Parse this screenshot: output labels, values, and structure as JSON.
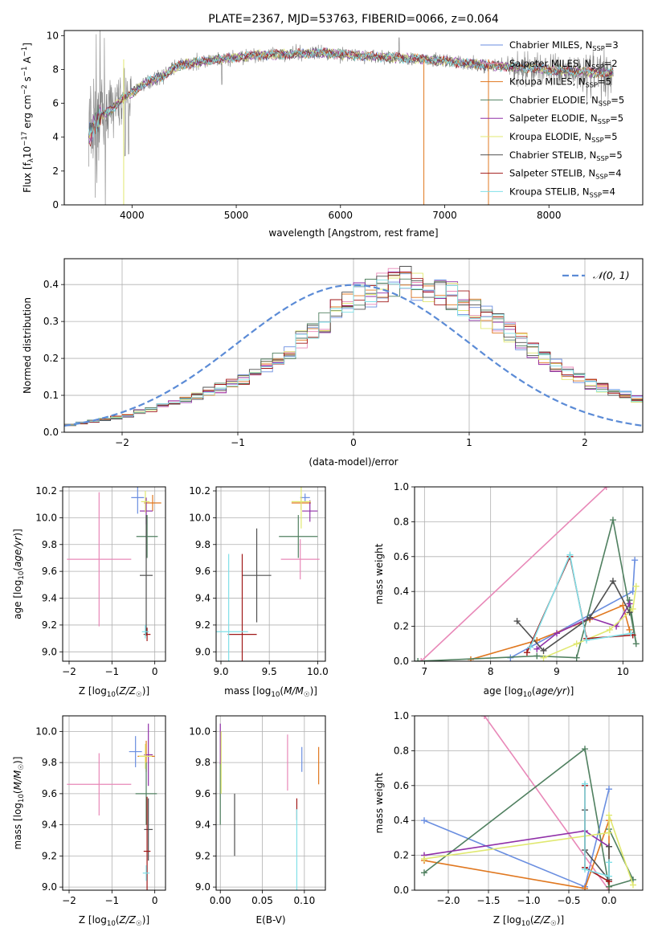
{
  "colors": {
    "Chabrier MILES": "#6a8ee0",
    "Salpeter MILES": "#e888b8",
    "Kroupa MILES": "#e07820",
    "Chabrier ELODIE": "#508060",
    "Salpeter ELODIE": "#9030a8",
    "Kroupa ELODIE": "#e0e870",
    "Chabrier STELIB": "#505050",
    "Salpeter STELIB": "#a01818",
    "Kroupa STELIB": "#80e0e8",
    "data": "#808080",
    "gaussian": "#5b8bd6",
    "grid": "#b0b0b0"
  },
  "chart_data": [
    {
      "id": "spectrum",
      "type": "line",
      "title": "PLATE=2367, MJD=53763, FIBERID=0066, z=0.064",
      "xlabel": "wavelength [Angstrom, rest frame]",
      "ylabel": "Flux [f_λ10^-17 erg cm^-2 s^-1 A^-1]",
      "xlim": [
        3350,
        8900
      ],
      "ylim": [
        0,
        10.3
      ],
      "xticks": [
        4000,
        5000,
        6000,
        7000,
        8000
      ],
      "yticks": [
        0,
        2,
        4,
        6,
        8,
        10
      ],
      "grid": false,
      "legend_position": "right",
      "legend": [
        {
          "label": "Chabrier MILES, N",
          "sub": "SSP",
          "value": "=3"
        },
        {
          "label": "Salpeter MILES, N",
          "sub": "SSP",
          "value": "=2"
        },
        {
          "label": "Kroupa MILES, N",
          "sub": "SSP",
          "value": "=5"
        },
        {
          "label": "Chabrier ELODIE, N",
          "sub": "SSP",
          "value": "=5"
        },
        {
          "label": "Salpeter ELODIE, N",
          "sub": "SSP",
          "value": "=5"
        },
        {
          "label": "Kroupa ELODIE, N",
          "sub": "SSP",
          "value": "=5"
        },
        {
          "label": "Chabrier STELIB, N",
          "sub": "SSP",
          "value": "=5"
        },
        {
          "label": "Salpeter STELIB, N",
          "sub": "SSP",
          "value": "=4"
        },
        {
          "label": "Kroupa STELIB, N",
          "sub": "SSP",
          "value": "=4"
        }
      ],
      "continuum_x": [
        3600,
        3700,
        3800,
        3900,
        4000,
        4100,
        4200,
        4300,
        4400,
        4500,
        4700,
        5000,
        5200,
        5500,
        5800,
        6000,
        6200,
        6500,
        6800,
        7000,
        7300,
        7500,
        8000,
        8500
      ],
      "continuum_y": [
        4.2,
        5.3,
        5.6,
        6.3,
        6.6,
        7.1,
        7.4,
        7.6,
        8.1,
        8.3,
        8.5,
        8.7,
        8.85,
        8.9,
        9.0,
        8.9,
        8.8,
        8.7,
        8.6,
        8.5,
        8.3,
        8.2,
        8.0,
        7.8
      ]
    },
    {
      "id": "residuals",
      "type": "histogram",
      "xlabel": "(data-model)/error",
      "ylabel": "Normed distribution",
      "xlim": [
        -2.5,
        2.5
      ],
      "ylim": [
        0,
        0.47
      ],
      "xticks": [
        -2,
        -1,
        0,
        1,
        2
      ],
      "yticks": [
        0.0,
        0.1,
        0.2,
        0.3,
        0.4
      ],
      "grid": true,
      "legend_position": "top-right",
      "legend": [
        {
          "label": "𝒩(0, 1)"
        }
      ],
      "bin_width": 0.1,
      "approx_bin_heights": [
        0.02,
        0.025,
        0.03,
        0.035,
        0.04,
        0.045,
        0.055,
        0.06,
        0.07,
        0.08,
        0.09,
        0.1,
        0.11,
        0.12,
        0.13,
        0.145,
        0.16,
        0.18,
        0.2,
        0.22,
        0.25,
        0.28,
        0.3,
        0.33,
        0.35,
        0.37,
        0.38,
        0.39,
        0.4,
        0.41,
        0.4,
        0.39,
        0.38,
        0.37,
        0.35,
        0.33,
        0.31,
        0.29,
        0.27,
        0.25,
        0.22,
        0.2,
        0.18,
        0.16,
        0.145,
        0.13,
        0.12,
        0.11,
        0.1,
        0.09,
        0.08,
        0.07,
        0.06,
        0.055,
        0.045,
        0.04,
        0.035,
        0.03,
        0.025,
        0.02
      ]
    },
    {
      "id": "age-vs-Z",
      "type": "scatter",
      "xlabel": "Z [log₁₀(Z/Z☉)]",
      "ylabel": "age  [log₁₀(age/yr)]",
      "xlim": [
        -2.15,
        0.25
      ],
      "ylim": [
        8.93,
        10.23
      ],
      "xticks": [
        -2,
        -1,
        0
      ],
      "yticks": [
        9.0,
        9.2,
        9.4,
        9.6,
        9.8,
        10.0,
        10.2
      ],
      "grid": true,
      "points": [
        {
          "model": "Chabrier MILES",
          "x": -0.4,
          "y": 10.15,
          "xerr": 0.15,
          "yerr": 0.12
        },
        {
          "model": "Salpeter MILES",
          "x": -1.3,
          "y": 9.69,
          "xerr": 0.75,
          "yerr": 0.5
        },
        {
          "model": "Kroupa MILES",
          "x": -0.05,
          "y": 10.11,
          "xerr": 0.2,
          "yerr": 0.06
        },
        {
          "model": "Chabrier ELODIE",
          "x": -0.18,
          "y": 9.86,
          "xerr": 0.25,
          "yerr": 0.16
        },
        {
          "model": "Salpeter ELODIE",
          "x": -0.2,
          "y": 10.05,
          "xerr": 0.15,
          "yerr": 0.1
        },
        {
          "model": "Kroupa ELODIE",
          "x": -0.22,
          "y": 10.12,
          "xerr": 0.1,
          "yerr": 0.08
        },
        {
          "model": "Chabrier STELIB",
          "x": -0.2,
          "y": 9.57,
          "xerr": 0.15,
          "yerr": 0.45
        },
        {
          "model": "Salpeter STELIB",
          "x": -0.18,
          "y": 9.13,
          "xerr": 0.08,
          "yerr": 0.05
        },
        {
          "model": "Kroupa STELIB",
          "x": -0.22,
          "y": 9.15,
          "xerr": 0.08,
          "yerr": 0.05
        }
      ]
    },
    {
      "id": "age-vs-mass",
      "type": "scatter",
      "xlabel": "mass [log₁₀(M/M☉)]",
      "ylabel": "",
      "xlim": [
        8.95,
        10.08
      ],
      "ylim": [
        8.93,
        10.23
      ],
      "xticks": [
        9.0,
        9.5,
        10.0
      ],
      "yticks": [
        9.0,
        9.2,
        9.4,
        9.6,
        9.8,
        10.0,
        10.2
      ],
      "grid": true,
      "points": [
        {
          "model": "Chabrier MILES",
          "x": 9.87,
          "y": 10.15,
          "xerr": 0.05,
          "yerr": 0.03
        },
        {
          "model": "Salpeter MILES",
          "x": 9.82,
          "y": 9.69,
          "xerr": 0.2,
          "yerr": 0.15
        },
        {
          "model": "Kroupa MILES",
          "x": 9.83,
          "y": 10.11,
          "xerr": 0.1,
          "yerr": 0.05
        },
        {
          "model": "Chabrier ELODIE",
          "x": 9.8,
          "y": 9.86,
          "xerr": 0.2,
          "yerr": 0.16
        },
        {
          "model": "Salpeter ELODIE",
          "x": 9.92,
          "y": 10.05,
          "xerr": 0.08,
          "yerr": 0.08
        },
        {
          "model": "Kroupa ELODIE",
          "x": 9.83,
          "y": 10.12,
          "xerr": 0.1,
          "yerr": 0.2
        },
        {
          "model": "Chabrier STELIB",
          "x": 9.37,
          "y": 9.57,
          "xerr": 0.15,
          "yerr": 0.35
        },
        {
          "model": "Salpeter STELIB",
          "x": 9.22,
          "y": 9.13,
          "xerr": 0.15,
          "yerr": 0.6
        },
        {
          "model": "Kroupa STELIB",
          "x": 9.08,
          "y": 9.15,
          "xerr": 0.2,
          "yerr": 0.58
        }
      ]
    },
    {
      "id": "mass-weight-vs-age",
      "type": "line",
      "xlabel": "age  [log₁₀(age/yr)]",
      "ylabel": "mass weight",
      "xlim": [
        6.85,
        10.3
      ],
      "ylim": [
        0,
        1.0
      ],
      "xticks": [
        7,
        8,
        9,
        10
      ],
      "yticks": [
        0.0,
        0.2,
        0.4,
        0.6,
        0.8,
        1.0
      ],
      "grid": true,
      "series": [
        {
          "model": "Chabrier MILES",
          "x": [
            8.3,
            10.15,
            10.18
          ],
          "y": [
            0.02,
            0.4,
            0.58
          ]
        },
        {
          "model": "Salpeter MILES",
          "x": [
            6.95,
            9.75
          ],
          "y": [
            0.0,
            1.0
          ]
        },
        {
          "model": "Kroupa MILES",
          "x": [
            7.7,
            8.7,
            9.5,
            10.0,
            10.1
          ],
          "y": [
            0.01,
            0.12,
            0.24,
            0.32,
            0.18
          ]
        },
        {
          "model": "Chabrier ELODIE",
          "x": [
            6.9,
            8.7,
            9.3,
            9.85,
            10.2,
            10.1
          ],
          "y": [
            0.0,
            0.03,
            0.02,
            0.81,
            0.1,
            0.35
          ]
        },
        {
          "model": "Salpeter ELODIE",
          "x": [
            8.7,
            9.0,
            9.5,
            9.9,
            10.1
          ],
          "y": [
            0.07,
            0.16,
            0.25,
            0.2,
            0.33
          ]
        },
        {
          "model": "Kroupa ELODIE",
          "x": [
            8.8,
            9.3,
            9.8,
            10.15,
            10.2
          ],
          "y": [
            0.02,
            0.1,
            0.18,
            0.3,
            0.43
          ]
        },
        {
          "model": "Chabrier STELIB",
          "x": [
            8.4,
            8.8,
            9.5,
            9.85,
            10.1
          ],
          "y": [
            0.23,
            0.06,
            0.25,
            0.46,
            0.28
          ]
        },
        {
          "model": "Salpeter STELIB",
          "x": [
            8.55,
            9.2,
            9.45,
            10.15
          ],
          "y": [
            0.05,
            0.6,
            0.13,
            0.15
          ]
        },
        {
          "model": "Kroupa STELIB",
          "x": [
            8.6,
            9.2,
            9.45,
            10.12
          ],
          "y": [
            0.08,
            0.61,
            0.12,
            0.16
          ]
        }
      ]
    },
    {
      "id": "mass-vs-Z",
      "type": "scatter",
      "xlabel": "Z [log₁₀(Z/Z☉)]",
      "ylabel": "mass [log₁₀(M/M☉)]",
      "xlim": [
        -2.15,
        0.25
      ],
      "ylim": [
        8.98,
        10.1
      ],
      "xticks": [
        -2,
        -1,
        0
      ],
      "yticks": [
        9.0,
        9.2,
        9.4,
        9.6,
        9.8,
        10.0
      ],
      "grid": true,
      "points": [
        {
          "model": "Chabrier MILES",
          "x": -0.45,
          "y": 9.87,
          "xerr": 0.15,
          "yerr": 0.1
        },
        {
          "model": "Salpeter MILES",
          "x": -1.3,
          "y": 9.66,
          "xerr": 0.75,
          "yerr": 0.2
        },
        {
          "model": "Kroupa MILES",
          "x": -0.2,
          "y": 9.84,
          "xerr": 0.2,
          "yerr": 0.1
        },
        {
          "model": "Chabrier ELODIE",
          "x": -0.2,
          "y": 9.6,
          "xerr": 0.25,
          "yerr": 0.2
        },
        {
          "model": "Salpeter ELODIE",
          "x": -0.15,
          "y": 9.85,
          "xerr": 0.1,
          "yerr": 0.2
        },
        {
          "model": "Kroupa ELODIE",
          "x": -0.22,
          "y": 9.84,
          "xerr": 0.15,
          "yerr": 0.08
        },
        {
          "model": "Chabrier STELIB",
          "x": -0.15,
          "y": 9.37,
          "xerr": 0.1,
          "yerr": 0.2
        },
        {
          "model": "Salpeter STELIB",
          "x": -0.18,
          "y": 9.23,
          "xerr": 0.08,
          "yerr": 0.35
        },
        {
          "model": "Kroupa STELIB",
          "x": -0.2,
          "y": 9.09,
          "xerr": 0.08,
          "yerr": 0.05
        }
      ]
    },
    {
      "id": "mass-vs-EBV",
      "type": "scatter",
      "xlabel": "E(B-V)",
      "ylabel": "",
      "xlim": [
        -0.005,
        0.125
      ],
      "ylim": [
        8.98,
        10.1
      ],
      "xticks": [
        0.0,
        0.05,
        0.1
      ],
      "yticks": [
        9.0,
        9.2,
        9.4,
        9.6,
        9.8,
        10.0
      ],
      "grid": true,
      "points": [
        {
          "model": "Chabrier MILES",
          "x": 0.097,
          "y": 9.82,
          "xerr": 0,
          "yerr": 0.08
        },
        {
          "model": "Salpeter MILES",
          "x": 0.08,
          "y": 9.8,
          "xerr": 0,
          "yerr": 0.18
        },
        {
          "model": "Kroupa MILES",
          "x": 0.117,
          "y": 9.78,
          "xerr": 0,
          "yerr": 0.12
        },
        {
          "model": "Chabrier ELODIE",
          "x": 0.0,
          "y": 9.6,
          "xerr": 0,
          "yerr": 0.2
        },
        {
          "model": "Salpeter ELODIE",
          "x": 0.0,
          "y": 9.92,
          "xerr": 0,
          "yerr": 0.13
        },
        {
          "model": "Kroupa ELODIE",
          "x": 0.001,
          "y": 9.8,
          "xerr": 0,
          "yerr": 0.2
        },
        {
          "model": "Chabrier STELIB",
          "x": 0.017,
          "y": 9.4,
          "xerr": 0,
          "yerr": 0.2
        },
        {
          "model": "Salpeter STELIB",
          "x": 0.091,
          "y": 9.5,
          "xerr": 0,
          "yerr": 0.07
        },
        {
          "model": "Kroupa STELIB",
          "x": 0.091,
          "y": 9.2,
          "xerr": 0,
          "yerr": 0.3
        }
      ]
    },
    {
      "id": "mass-weight-vs-Z",
      "type": "line",
      "xlabel": "Z [log₁₀(Z/Z☉)]",
      "ylabel": "mass weight",
      "xlim": [
        -2.42,
        0.42
      ],
      "ylim": [
        0,
        1.0
      ],
      "xticks": [
        -2.0,
        -1.5,
        -1.0,
        -0.5,
        0.0
      ],
      "yticks": [
        0.0,
        0.2,
        0.4,
        0.6,
        0.8,
        1.0
      ],
      "grid": true,
      "series": [
        {
          "model": "Chabrier MILES",
          "x": [
            -2.3,
            -0.3,
            0.0
          ],
          "y": [
            0.4,
            0.02,
            0.58
          ]
        },
        {
          "model": "Salpeter MILES",
          "x": [
            -1.55,
            0.0
          ],
          "y": [
            1.0,
            0.0
          ]
        },
        {
          "model": "Kroupa MILES",
          "x": [
            -2.3,
            -0.3,
            0.0,
            0.0
          ],
          "y": [
            0.17,
            0.01,
            0.4,
            0.02
          ]
        },
        {
          "model": "Chabrier ELODIE",
          "x": [
            -2.3,
            -0.3,
            0.0,
            0.3,
            0.0
          ],
          "y": [
            0.1,
            0.81,
            0.02,
            0.06,
            0.35
          ]
        },
        {
          "model": "Salpeter ELODIE",
          "x": [
            -2.3,
            -0.3,
            0.0
          ],
          "y": [
            0.2,
            0.34,
            0.25
          ]
        },
        {
          "model": "Kroupa ELODIE",
          "x": [
            -2.3,
            0.0,
            0.0,
            0.3
          ],
          "y": [
            0.18,
            0.33,
            0.43,
            0.03
          ]
        },
        {
          "model": "Chabrier STELIB",
          "x": [
            -0.3,
            -0.3,
            0.0,
            0.0
          ],
          "y": [
            0.46,
            0.23,
            0.06,
            0.25
          ]
        },
        {
          "model": "Salpeter STELIB",
          "x": [
            -0.3,
            -0.3,
            0.0
          ],
          "y": [
            0.6,
            0.13,
            0.05
          ]
        },
        {
          "model": "Kroupa STELIB",
          "x": [
            -0.3,
            -0.3,
            0.0,
            0.0
          ],
          "y": [
            0.61,
            0.12,
            0.08,
            0.16
          ]
        }
      ]
    }
  ]
}
